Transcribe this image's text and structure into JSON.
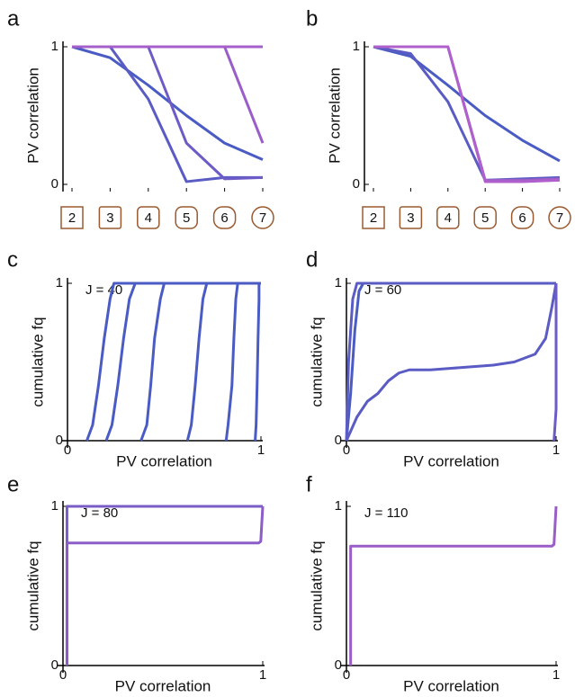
{
  "chart_data": [
    {
      "type": "line",
      "panel_label": "a",
      "ylabel": "PV correlation",
      "categories": [
        "2",
        "3",
        "4",
        "5",
        "6",
        "7"
      ],
      "ylim": [
        0,
        1
      ],
      "yticks": [
        0,
        1
      ],
      "series": [
        {
          "color": "#4a5cc4",
          "values": [
            1,
            0.92,
            0.72,
            0.5,
            0.3,
            0.18
          ]
        },
        {
          "color": "#5a5cc4",
          "values": [
            1,
            1,
            0.62,
            0.02,
            0.05,
            0.05
          ]
        },
        {
          "color": "#6e5cc6",
          "values": [
            1,
            1,
            1,
            0.3,
            0.04,
            0.05
          ]
        },
        {
          "color": "#9a5ec8",
          "values": [
            1,
            1,
            1,
            1,
            1,
            0.3
          ]
        },
        {
          "color": "#a45fca",
          "values": [
            1,
            1,
            1,
            1,
            1,
            1
          ]
        }
      ]
    },
    {
      "type": "line",
      "panel_label": "b",
      "ylabel": "PV correlation",
      "categories": [
        "2",
        "3",
        "4",
        "5",
        "6",
        "7"
      ],
      "ylim": [
        0,
        1
      ],
      "yticks": [
        0,
        1
      ],
      "series": [
        {
          "color": "#4a5cc4",
          "values": [
            1,
            0.93,
            0.72,
            0.5,
            0.32,
            0.17
          ]
        },
        {
          "color": "#5a5cc4",
          "values": [
            1,
            0.95,
            0.6,
            0.03,
            0.04,
            0.05
          ]
        },
        {
          "color": "#9a5ec8",
          "values": [
            1,
            1,
            1,
            0.03,
            0.03,
            0.04
          ]
        },
        {
          "color": "#b060cc",
          "values": [
            1,
            1,
            1,
            0.02,
            0.02,
            0.03
          ]
        }
      ]
    },
    {
      "type": "cdf",
      "panel_label": "c",
      "ylabel": "cumulative fq",
      "xlabel": "PV correlation",
      "annotation": "J = 40",
      "xlim": [
        0,
        1
      ],
      "xticks": [
        0,
        1
      ],
      "ylim": [
        0,
        1
      ],
      "yticks": [
        0,
        1
      ],
      "series": [
        {
          "color": "#4a5cc4",
          "x": [
            0.1,
            0.13,
            0.16,
            0.19,
            0.22,
            0.24,
            1
          ],
          "values": [
            0,
            0.1,
            0.35,
            0.65,
            0.9,
            1,
            1
          ]
        },
        {
          "color": "#4a5cc4",
          "x": [
            0.2,
            0.23,
            0.26,
            0.29,
            0.32,
            0.35,
            1
          ],
          "values": [
            0,
            0.1,
            0.35,
            0.65,
            0.9,
            1,
            1
          ]
        },
        {
          "color": "#4a5cc4",
          "x": [
            0.38,
            0.41,
            0.43,
            0.45,
            0.48,
            0.5,
            1
          ],
          "values": [
            0,
            0.1,
            0.35,
            0.65,
            0.9,
            1,
            1
          ]
        },
        {
          "color": "#4a5cc4",
          "x": [
            0.62,
            0.64,
            0.66,
            0.68,
            0.7,
            0.72,
            1
          ],
          "values": [
            0,
            0.1,
            0.35,
            0.65,
            0.9,
            1,
            1
          ]
        },
        {
          "color": "#4a5cc4",
          "x": [
            0.82,
            0.83,
            0.85,
            0.86,
            0.87,
            0.88,
            1
          ],
          "values": [
            0,
            0.1,
            0.35,
            0.65,
            0.9,
            1,
            1
          ]
        },
        {
          "color": "#4a5cc4",
          "x": [
            0.97,
            0.975,
            0.98,
            0.985,
            0.99,
            0.99,
            1
          ],
          "values": [
            0,
            0.1,
            0.35,
            0.65,
            0.9,
            1,
            1
          ]
        }
      ]
    },
    {
      "type": "cdf",
      "panel_label": "d",
      "ylabel": "cumulative fq",
      "xlabel": "PV correlation",
      "annotation": "J = 60",
      "xlim": [
        0,
        1
      ],
      "xticks": [
        0,
        1
      ],
      "ylim": [
        0,
        1
      ],
      "yticks": [
        0,
        1
      ],
      "series": [
        {
          "color": "#4a5cc4",
          "x": [
            0,
            0.02,
            0.04,
            0.06,
            0.08,
            1
          ],
          "values": [
            0,
            0.3,
            0.7,
            0.95,
            1,
            1
          ]
        },
        {
          "color": "#5a5cc4",
          "x": [
            0,
            0.01,
            0.03,
            0.05,
            1
          ],
          "values": [
            0,
            0.5,
            0.9,
            1,
            1
          ]
        },
        {
          "color": "#5a5cc4",
          "x": [
            0,
            0.05,
            0.1,
            0.15,
            0.2,
            0.25,
            0.3,
            0.4,
            0.5,
            0.6,
            0.7,
            0.8,
            0.9,
            0.95,
            0.98,
            1
          ],
          "values": [
            0,
            0.15,
            0.25,
            0.3,
            0.38,
            0.43,
            0.45,
            0.45,
            0.46,
            0.47,
            0.48,
            0.5,
            0.55,
            0.65,
            0.85,
            1
          ]
        },
        {
          "color": "#6e5cc6",
          "x": [
            0.99,
            1,
            1
          ],
          "values": [
            0,
            0.2,
            1
          ]
        }
      ]
    },
    {
      "type": "cdf",
      "panel_label": "e",
      "ylabel": "cumulative fq",
      "xlabel": "PV correlation",
      "annotation": "J = 80",
      "xlim": [
        0,
        1
      ],
      "xticks": [
        0,
        1
      ],
      "ylim": [
        0,
        1
      ],
      "yticks": [
        0,
        1
      ],
      "series": [
        {
          "color": "#7a5cc6",
          "x": [
            0.02,
            0.02,
            1
          ],
          "values": [
            0,
            1,
            1
          ]
        },
        {
          "color": "#8a5dc8",
          "x": [
            0.02,
            0.02,
            0.98,
            0.99,
            1
          ],
          "values": [
            0,
            0.77,
            0.77,
            0.78,
            1
          ]
        }
      ]
    },
    {
      "type": "cdf",
      "panel_label": "f",
      "ylabel": "cumulative fq",
      "xlabel": "PV correlation",
      "annotation": "J = 110",
      "xlim": [
        0,
        1
      ],
      "xticks": [
        0,
        1
      ],
      "ylim": [
        0,
        1
      ],
      "yticks": [
        0,
        1
      ],
      "series": [
        {
          "color": "#9a5ec8",
          "x": [
            0.02,
            0.02,
            0.98,
            0.99,
            1
          ],
          "values": [
            0,
            0.75,
            0.75,
            0.76,
            1
          ]
        }
      ]
    }
  ]
}
